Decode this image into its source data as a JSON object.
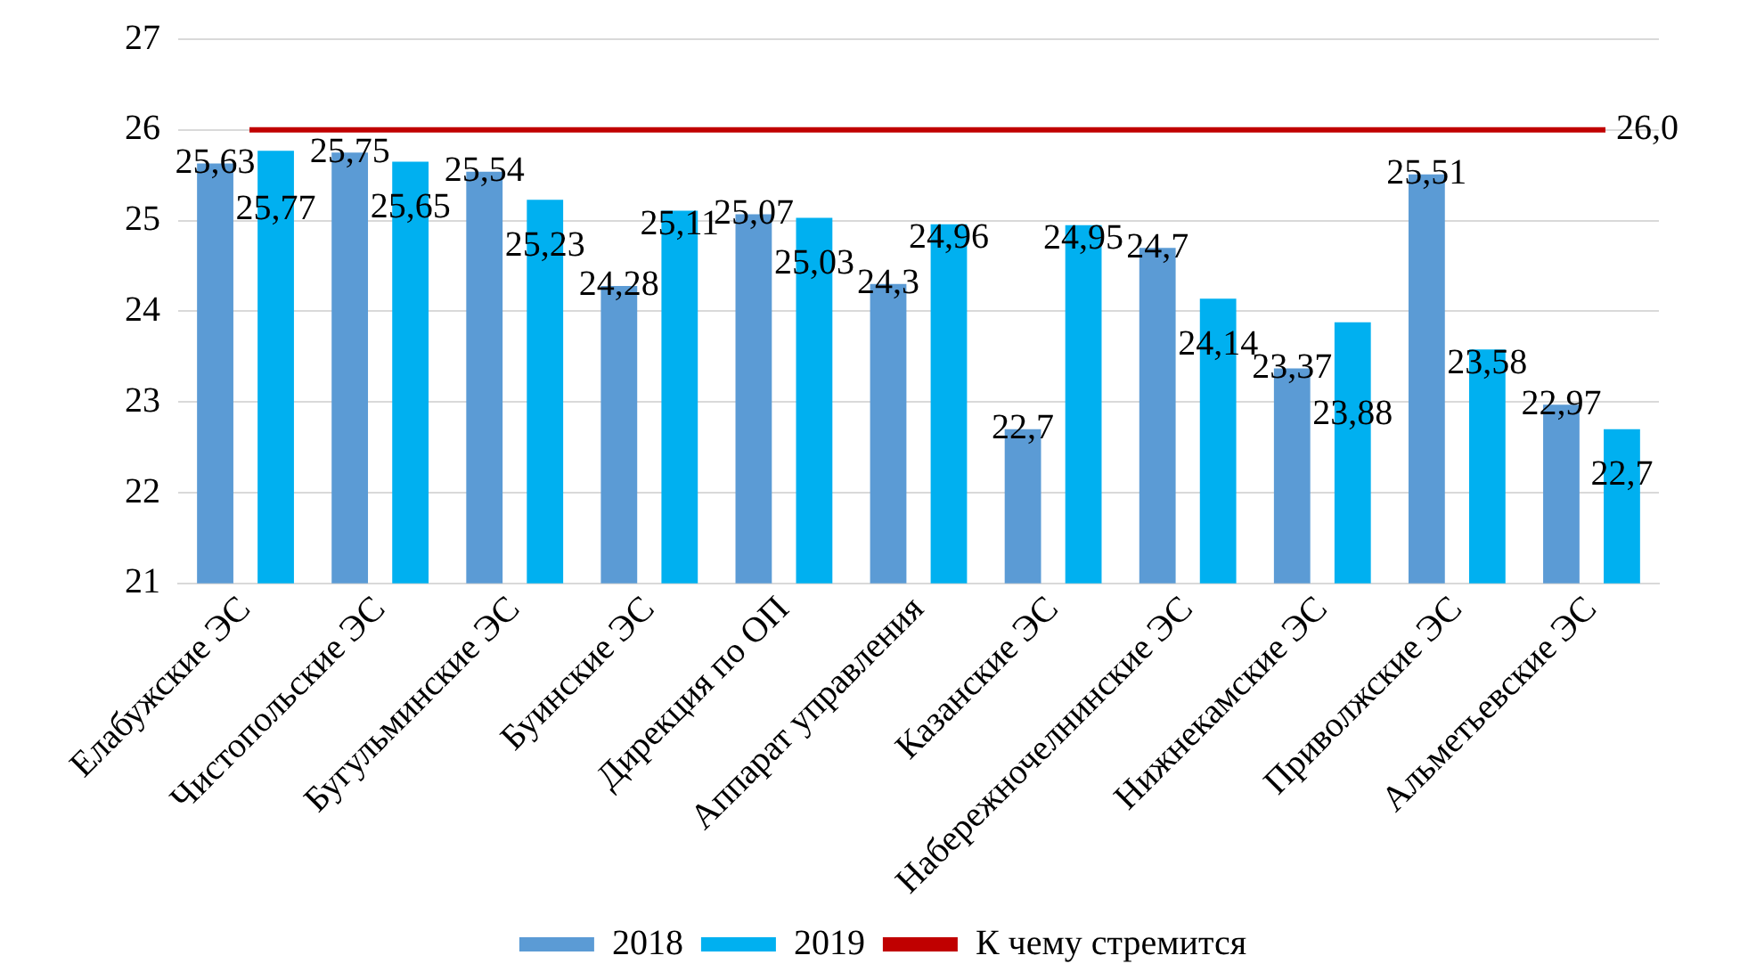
{
  "chart_data": {
    "type": "bar",
    "categories": [
      "Елабужские ЭС",
      "Чистопольские ЭС",
      "Бугульминские ЭС",
      "Буинские ЭС",
      "Дирекция по ОП",
      "Аппарат управления",
      "Казанские ЭС",
      "Набережночелнинские ЭС",
      "Нижнекамские ЭС",
      "Приволжские ЭС",
      "Альметьевские ЭС"
    ],
    "series": [
      {
        "name": "2018",
        "color": "#5b9bd5",
        "values": [
          25.63,
          25.75,
          25.54,
          24.28,
          25.07,
          24.3,
          22.7,
          24.7,
          23.37,
          25.51,
          22.97
        ],
        "value_labels": [
          "25,63",
          "25,75",
          "25,54",
          "24,28",
          "25,07",
          "24,3",
          "22,7",
          "24,7",
          "23,37",
          "25,51",
          "22,97"
        ]
      },
      {
        "name": "2019",
        "color": "#00b0f0",
        "values": [
          25.77,
          25.65,
          25.23,
          25.11,
          25.03,
          24.96,
          24.95,
          24.14,
          23.88,
          23.58,
          22.7
        ],
        "value_labels": [
          "25,77",
          "25,65",
          "25,23",
          "25,11",
          "25,03",
          "24,96",
          "24,95",
          "24,14",
          "23,88",
          "23,58",
          "22,7"
        ]
      }
    ],
    "ylim": [
      21,
      27
    ],
    "yticks": [
      21,
      22,
      23,
      24,
      25,
      26,
      27
    ],
    "grid": "y",
    "legend": "bottom",
    "ref_lines": [
      {
        "axis": "y",
        "value": 26,
        "label": "К чему стремится",
        "color": "#c00000"
      }
    ],
    "annotations": [
      "26,0"
    ]
  }
}
